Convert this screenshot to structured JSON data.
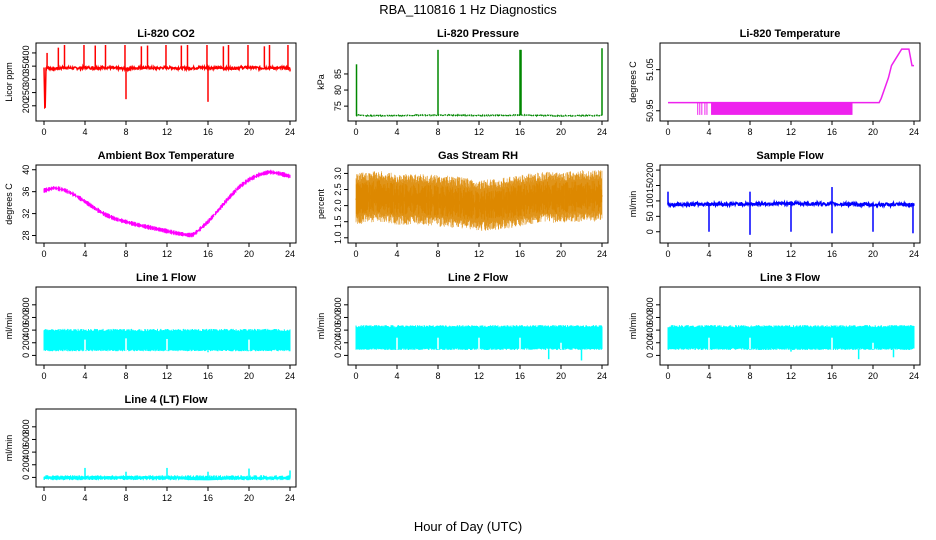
{
  "figure": {
    "title": "RBA_110816  1 Hz Diagnostics",
    "xlabel": "Hour of Day (UTC)"
  },
  "chart_data": [
    {
      "id": "co2",
      "type": "line",
      "title": "Li-820 CO2",
      "ylabel": "Licor ppm",
      "color": "#ff0000",
      "xlim": [
        0,
        24
      ],
      "x_ticks": [
        "0",
        "4",
        "8",
        "12",
        "16",
        "20",
        "24"
      ],
      "ylim": [
        150,
        430
      ],
      "y_ticks": [
        "200",
        "250",
        "300",
        "350",
        "400"
      ],
      "series": [
        {
          "x": [
            0,
            0.1,
            0.2,
            1,
            2,
            3,
            4,
            5,
            6,
            7,
            8,
            9,
            10,
            11,
            12,
            13,
            14,
            15,
            16,
            17,
            18,
            19,
            20,
            21,
            22,
            23,
            23.5,
            24
          ],
          "y": [
            345,
            160,
            345,
            340,
            345,
            342,
            345,
            343,
            345,
            342,
            340,
            343,
            345,
            342,
            345,
            343,
            342,
            344,
            345,
            343,
            342,
            344,
            345,
            343,
            344,
            342,
            345,
            340
          ]
        }
      ],
      "spikes_up": [
        [
          0.3,
          400
        ],
        [
          1.4,
          420
        ],
        [
          2,
          430
        ],
        [
          3.9,
          430
        ],
        [
          5,
          428
        ],
        [
          6,
          430
        ],
        [
          7.9,
          430
        ],
        [
          9.5,
          425
        ],
        [
          10.1,
          428
        ],
        [
          11.9,
          430
        ],
        [
          13.4,
          428
        ],
        [
          14,
          430
        ],
        [
          15.9,
          430
        ],
        [
          17.5,
          425
        ],
        [
          18,
          430
        ],
        [
          19.9,
          430
        ],
        [
          21.5,
          425
        ],
        [
          22,
          430
        ],
        [
          23.8,
          430
        ]
      ],
      "spikes_down": [
        [
          8,
          225
        ],
        [
          16,
          215
        ],
        [
          24,
          330
        ]
      ]
    },
    {
      "id": "pressure",
      "type": "line",
      "title": "Li-820 Pressure",
      "ylabel": "kPa",
      "color": "#008800",
      "xlim": [
        0,
        24
      ],
      "x_ticks": [
        "0",
        "4",
        "8",
        "12",
        "16",
        "20",
        "24"
      ],
      "ylim": [
        71,
        94
      ],
      "y_ticks": [
        "75",
        "80",
        "85"
      ],
      "series": [
        {
          "x": [
            0,
            0.3,
            1,
            4,
            8,
            12,
            16,
            20,
            24
          ],
          "y": [
            72,
            72.3,
            72,
            72.1,
            72.2,
            72.1,
            72.2,
            72,
            72.1
          ]
        }
      ],
      "spikes_up": [
        [
          0.05,
          88
        ],
        [
          8,
          92.5
        ],
        [
          16,
          92.5
        ],
        [
          16.1,
          92.5
        ],
        [
          24,
          93
        ]
      ]
    },
    {
      "id": "licor_temp",
      "type": "line",
      "title": "Li-820 Temperature",
      "ylabel": "degrees C",
      "color": "#ee22ee",
      "xlim": [
        0,
        24
      ],
      "x_ticks": [
        "0",
        "4",
        "8",
        "12",
        "16",
        "20",
        "24"
      ],
      "ylim": [
        50.93,
        51.11
      ],
      "y_ticks": [
        "50.95",
        "51.05"
      ],
      "series": [
        {
          "x": [
            0,
            3,
            4,
            18,
            20.6,
            20.8,
            21.5,
            21.8,
            22.3,
            22.8,
            23.5,
            23.8,
            24
          ],
          "y": [
            50.97,
            50.97,
            50.97,
            50.97,
            50.97,
            50.98,
            51.03,
            51.06,
            51.08,
            51.1,
            51.1,
            51.06,
            51.06
          ]
        }
      ],
      "dense_band": {
        "x0": 4.2,
        "x1": 18,
        "y0": 50.94,
        "y1": 50.97
      }
    },
    {
      "id": "box_temp",
      "type": "line",
      "title": "Ambient Box Temperature",
      "ylabel": "degrees C",
      "color": "#ff00ff",
      "xlim": [
        0,
        24
      ],
      "x_ticks": [
        "0",
        "4",
        "8",
        "12",
        "16",
        "20",
        "24"
      ],
      "ylim": [
        27,
        40.5
      ],
      "y_ticks": [
        "28",
        "32",
        "36",
        "40"
      ],
      "series": [
        {
          "x": [
            0,
            1,
            2,
            3,
            4,
            5,
            6,
            7,
            8,
            9,
            10,
            11,
            12,
            13,
            14,
            14.5,
            15,
            16,
            17,
            18,
            19,
            20,
            21,
            22,
            23,
            24
          ],
          "y": [
            36.2,
            36.7,
            36.3,
            35.4,
            34.2,
            32.9,
            31.8,
            31,
            30.5,
            30,
            29.6,
            29.2,
            28.8,
            28.4,
            28.1,
            28.1,
            28.8,
            30.5,
            32.6,
            34.8,
            36.8,
            38.2,
            39.1,
            39.6,
            39.3,
            38.8
          ]
        }
      ],
      "band_width": 0.9
    },
    {
      "id": "rh",
      "type": "line",
      "title": "Gas Stream RH",
      "ylabel": "percent",
      "color": "#dd8800",
      "xlim": [
        0,
        24
      ],
      "x_ticks": [
        "0",
        "4",
        "8",
        "12",
        "16",
        "20",
        "24"
      ],
      "ylim": [
        0.9,
        3.2
      ],
      "y_ticks": [
        "1.0",
        "1.5",
        "2.0",
        "2.5",
        "3.0"
      ],
      "series": [
        {
          "x": [
            0,
            2,
            4,
            6,
            8,
            10,
            12,
            14,
            16,
            18,
            20,
            22,
            24
          ],
          "y": [
            2.2,
            2.3,
            2.2,
            2.2,
            2.15,
            2.1,
            2.0,
            2.05,
            2.15,
            2.25,
            2.25,
            2.3,
            2.3
          ]
        }
      ],
      "band_width": 1.0
    },
    {
      "id": "sample_flow",
      "type": "line",
      "title": "Sample Flow",
      "ylabel": "ml/min",
      "color": "#0000ff",
      "xlim": [
        0,
        24
      ],
      "x_ticks": [
        "0",
        "4",
        "8",
        "12",
        "16",
        "20",
        "24"
      ],
      "ylim": [
        -30,
        210
      ],
      "y_ticks": [
        "0",
        "50",
        "100",
        "150",
        "200"
      ],
      "series": [
        {
          "x": [
            0,
            4,
            8,
            12,
            16,
            20,
            24
          ],
          "y": [
            88,
            90,
            90,
            92,
            90,
            88,
            88
          ]
        }
      ],
      "spikes_up": [
        [
          0,
          130
        ],
        [
          8,
          130
        ],
        [
          16,
          145
        ]
      ],
      "spikes_down": [
        [
          4,
          0
        ],
        [
          8,
          -10
        ],
        [
          12,
          0
        ],
        [
          16,
          -5
        ],
        [
          20,
          0
        ],
        [
          23.9,
          -5
        ]
      ]
    },
    {
      "id": "line1",
      "type": "line",
      "title": "Line 1 Flow",
      "ylabel": "ml/min",
      "color": "#00ffff",
      "xlim": [
        0,
        24
      ],
      "x_ticks": [
        "0",
        "4",
        "8",
        "12",
        "16",
        "20",
        "24"
      ],
      "ylim": [
        -120,
        1050
      ],
      "y_ticks": [
        "0",
        "200",
        "400",
        "600",
        "800"
      ],
      "series": [
        {
          "x": [
            0,
            24
          ],
          "y": [
            240,
            240
          ]
        }
      ],
      "band": [
        80,
        400
      ],
      "spikes_down": [
        [
          4,
          250
        ],
        [
          8,
          270
        ],
        [
          12,
          260
        ],
        [
          16,
          50
        ],
        [
          20,
          250
        ]
      ]
    },
    {
      "id": "line2",
      "type": "line",
      "title": "Line 2 Flow",
      "ylabel": "ml/min",
      "color": "#00ffff",
      "xlim": [
        0,
        24
      ],
      "x_ticks": [
        "0",
        "4",
        "8",
        "12",
        "16",
        "20",
        "24"
      ],
      "ylim": [
        -120,
        1050
      ],
      "y_ticks": [
        "0",
        "200",
        "400",
        "600",
        "800"
      ],
      "series": [
        {
          "x": [
            0,
            24
          ],
          "y": [
            300,
            300
          ]
        }
      ],
      "band": [
        100,
        460
      ],
      "spikes_down": [
        [
          4,
          280
        ],
        [
          8,
          280
        ],
        [
          12,
          280
        ],
        [
          16,
          280
        ],
        [
          18.8,
          -60
        ],
        [
          20,
          200
        ],
        [
          22,
          -80
        ]
      ]
    },
    {
      "id": "line3",
      "type": "line",
      "title": "Line 3 Flow",
      "ylabel": "ml/min",
      "color": "#00ffff",
      "xlim": [
        0,
        24
      ],
      "x_ticks": [
        "0",
        "4",
        "8",
        "12",
        "16",
        "20",
        "24"
      ],
      "ylim": [
        -120,
        1050
      ],
      "y_ticks": [
        "0",
        "200",
        "400",
        "600",
        "800"
      ],
      "series": [
        {
          "x": [
            0,
            24
          ],
          "y": [
            300,
            300
          ]
        }
      ],
      "band": [
        100,
        460
      ],
      "spikes_down": [
        [
          4,
          280
        ],
        [
          8,
          280
        ],
        [
          12,
          60
        ],
        [
          16,
          280
        ],
        [
          18.6,
          -60
        ],
        [
          20,
          200
        ],
        [
          22,
          -30
        ]
      ]
    },
    {
      "id": "line4",
      "type": "line",
      "title": "Line 4 (LT) Flow",
      "ylabel": "ml/min",
      "color": "#00ffff",
      "xlim": [
        0,
        24
      ],
      "x_ticks": [
        "0",
        "4",
        "8",
        "12",
        "16",
        "20",
        "24"
      ],
      "ylim": [
        -120,
        1050
      ],
      "y_ticks": [
        "0",
        "200",
        "400",
        "600",
        "800"
      ],
      "series": [
        {
          "x": [
            0,
            4,
            8,
            12,
            13,
            14,
            16,
            18,
            20,
            22,
            24
          ],
          "y": [
            5,
            5,
            5,
            5,
            0,
            -30,
            -35,
            -20,
            -15,
            -10,
            -5
          ]
        }
      ],
      "band": [
        -30,
        15
      ],
      "spikes_up": [
        [
          4,
          150
        ],
        [
          8,
          90
        ],
        [
          12,
          150
        ],
        [
          16,
          90
        ],
        [
          20,
          140
        ],
        [
          24,
          110
        ]
      ]
    }
  ]
}
